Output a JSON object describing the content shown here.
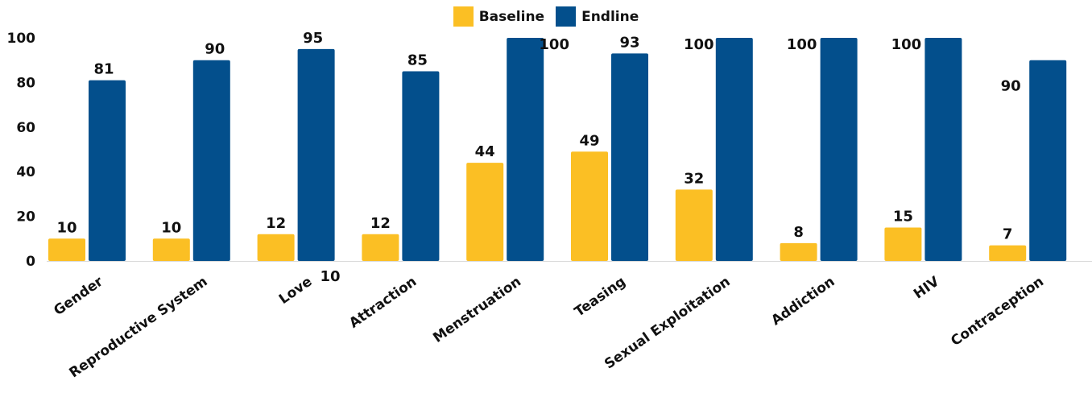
{
  "chart_data": {
    "type": "bar",
    "categories": [
      "Gender",
      "Reproductive System",
      "Love",
      "Attraction",
      "Menstruation",
      "Teasing",
      "Sexual Exploitation",
      "Addiction",
      "HIV",
      "Contraception"
    ],
    "series": [
      {
        "name": "Baseline",
        "color": "#FBBF24",
        "values": [
          10,
          10,
          12,
          12,
          44,
          49,
          32,
          8,
          15,
          7
        ]
      },
      {
        "name": "Endline",
        "color": "#034F8C",
        "values": [
          81,
          90,
          95,
          85,
          100,
          93,
          100,
          100,
          100,
          90
        ]
      }
    ],
    "baseline_labels": [
      "10",
      "10",
      "12",
      "12",
      "44",
      "49",
      "32",
      "8",
      "15",
      "7"
    ],
    "endline_labels": [
      "81",
      "90",
      "95",
      "85",
      "100",
      "93",
      "100",
      "100",
      "100",
      "90"
    ],
    "stray_labels": [
      "10"
    ],
    "yticks": [
      "0",
      "20",
      "40",
      "60",
      "80",
      "100"
    ],
    "ylim": [
      0,
      100
    ],
    "legend_position": "top-center",
    "grid": false
  }
}
